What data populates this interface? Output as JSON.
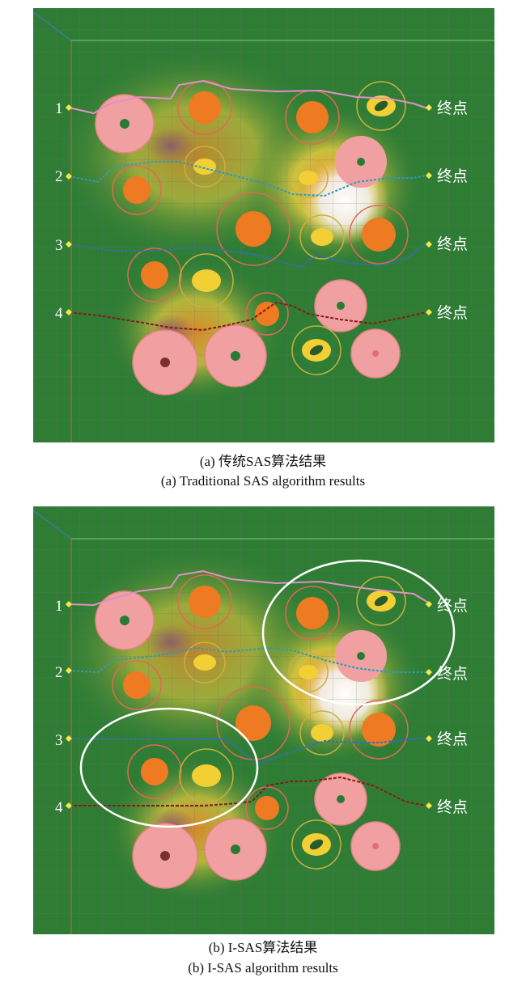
{
  "panels": [
    {
      "id": "a",
      "row_labels": [
        "1",
        "2",
        "3",
        "4"
      ],
      "end_labels": [
        "终点",
        "终点",
        "终点",
        "终点"
      ],
      "caption_cn": "(a) 传统SAS算法结果",
      "caption_en": "(a) Traditional SAS algorithm results",
      "highlight_ellipses": false
    },
    {
      "id": "b",
      "row_labels": [
        "1",
        "2",
        "3",
        "4"
      ],
      "end_labels": [
        "终点",
        "终点",
        "终点",
        "终点"
      ],
      "caption_cn": "(b) I-SAS算法结果",
      "caption_en": "(b) I-SAS algorithm results",
      "highlight_ellipses": true
    }
  ],
  "colors": {
    "terrain": "#2f7d35",
    "grid": "#6b6b6b",
    "path1": "#e090c8",
    "path2": "#2a9bbf",
    "path3": "#2f6fc0",
    "path4": "#8a1a1a",
    "start_marker": "#f2e94a",
    "threat_orange": "#ee7a22",
    "threat_pink": "#f0a0a0",
    "threat_yellow": "#f2cf35",
    "highlight": "#ffffff"
  }
}
